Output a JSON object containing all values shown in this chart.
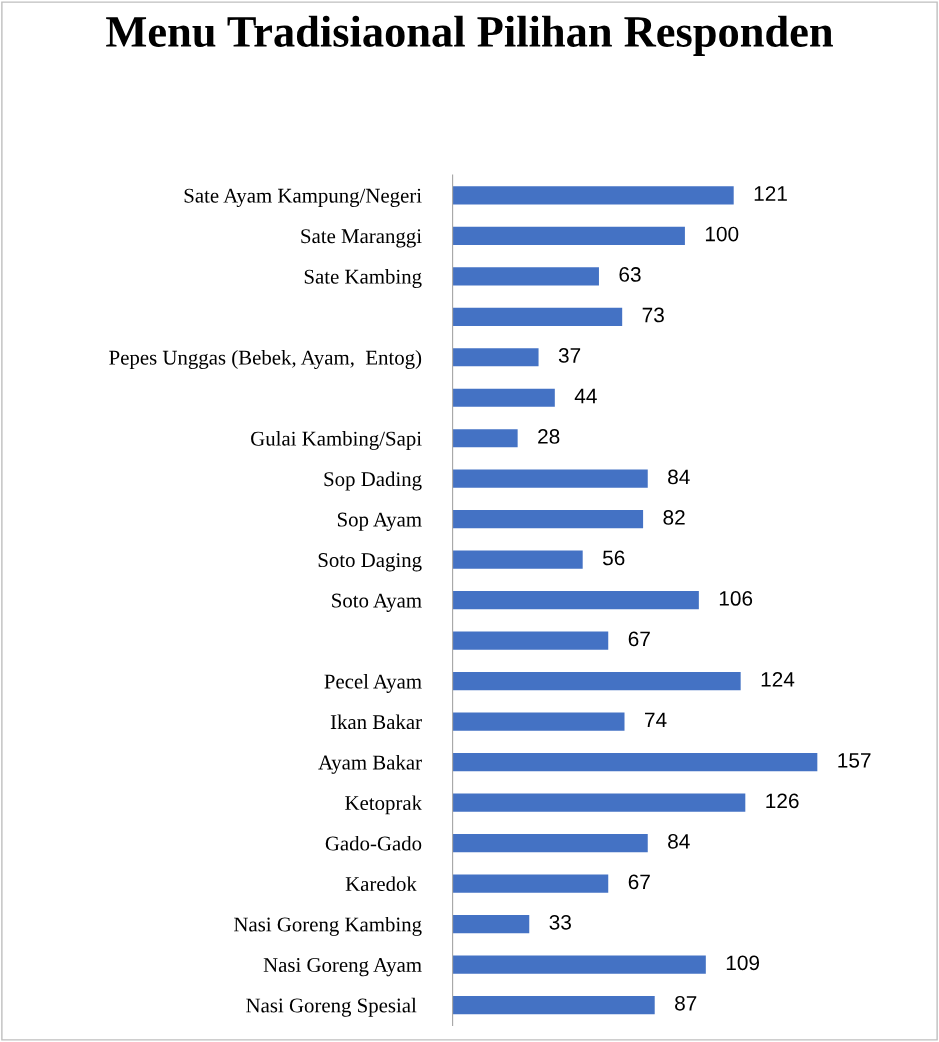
{
  "chart_data": {
    "type": "bar",
    "orientation": "horizontal",
    "title": "Menu Tradisiaonal Pilihan Responden",
    "categories": [
      "Sate Ayam Kampung/Negeri",
      "Sate Maranggi",
      "Sate Kambing",
      null,
      "Pepes Unggas (Bebek, Ayam,  Entog)",
      null,
      "Gulai Kambing/Sapi",
      "Sop Dading",
      "Sop Ayam",
      "Soto Daging",
      "Soto Ayam",
      null,
      "Pecel Ayam",
      "Ikan Bakar",
      "Ayam Bakar",
      "Ketoprak",
      "Gado-Gado",
      "Karedok ",
      "Nasi Goreng Kambing",
      "Nasi Goreng Ayam",
      "Nasi Goreng Spesial "
    ],
    "values": [
      121,
      100,
      63,
      73,
      37,
      44,
      28,
      84,
      82,
      56,
      106,
      67,
      124,
      74,
      157,
      126,
      84,
      67,
      33,
      109,
      87
    ],
    "color": "#4472c4",
    "data_labels": true,
    "grid": false,
    "legend": false,
    "tick_labels": "y"
  }
}
